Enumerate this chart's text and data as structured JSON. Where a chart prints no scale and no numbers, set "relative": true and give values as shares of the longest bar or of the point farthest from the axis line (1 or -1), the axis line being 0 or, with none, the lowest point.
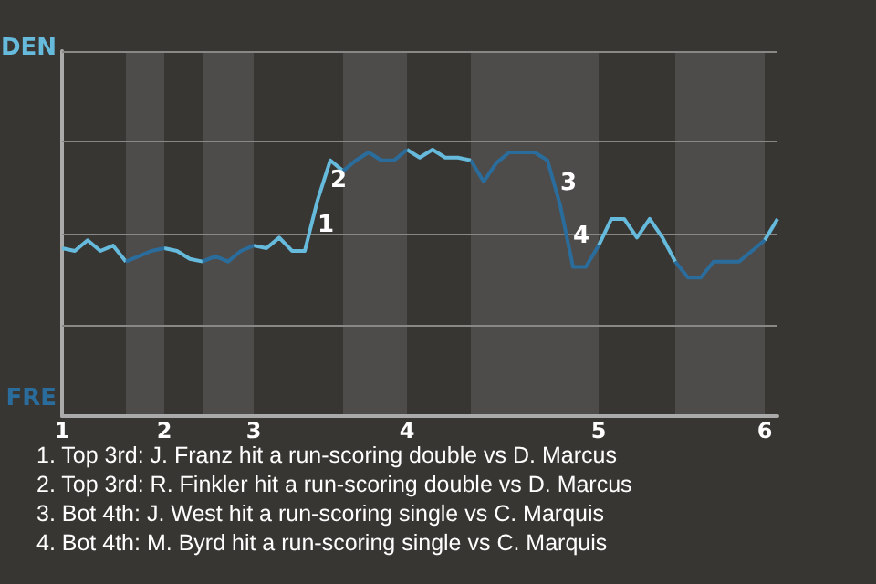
{
  "chart_data": {
    "type": "line",
    "relative": true,
    "categories": [
      "1",
      null,
      null,
      null,
      null,
      null,
      null,
      null,
      "2",
      null,
      null,
      null,
      null,
      null,
      null,
      "3",
      null,
      null,
      null,
      null,
      null,
      null,
      null,
      null,
      null,
      null,
      null,
      "4",
      null,
      null,
      null,
      null,
      null,
      null,
      null,
      null,
      null,
      null,
      null,
      null,
      null,
      null,
      "5",
      null,
      null,
      null,
      null,
      null,
      null,
      null,
      null,
      null,
      null,
      null,
      null,
      "6",
      null
    ],
    "series": [
      {
        "color": "#66bbdd",
        "values": [
          0.63,
          0.62,
          0.66,
          0.62,
          0.64,
          0.58,
          null,
          null,
          0.63,
          0.62,
          0.59,
          0.58,
          null,
          null,
          null,
          0.64,
          0.63,
          0.67,
          0.62,
          0.62,
          0.81,
          0.96,
          0.92,
          null,
          null,
          null,
          null,
          1,
          0.97,
          1,
          0.97,
          0.97,
          0.96,
          null,
          null,
          null,
          null,
          null,
          null,
          null,
          null,
          null,
          0.64,
          0.74,
          0.74,
          0.67,
          0.74,
          0.67,
          0.58,
          null,
          null,
          null,
          null,
          null,
          null,
          0.66,
          0.74
        ]
      },
      {
        "color": "#2a6d9c",
        "values": [
          null,
          null,
          null,
          null,
          null,
          0.58,
          0.6,
          0.62,
          0.63,
          null,
          null,
          0.58,
          0.6,
          0.58,
          0.62,
          0.64,
          null,
          null,
          null,
          null,
          null,
          null,
          0.92,
          0.96,
          0.99,
          0.96,
          0.96,
          1,
          null,
          null,
          null,
          null,
          0.96,
          0.88,
          0.95,
          0.99,
          0.99,
          0.99,
          0.96,
          0.79,
          0.56,
          0.56,
          0.64,
          null,
          null,
          null,
          null,
          null,
          0.58,
          0.52,
          0.52,
          0.58,
          0.58,
          0.58,
          0.62,
          0.66,
          null
        ]
      }
    ],
    "marker": "none",
    "ref_lines": [
      {
        "axis": "y",
        "value": 0.34,
        "color": "#8a8886"
      },
      {
        "axis": "y",
        "value": 0.68,
        "color": "#8a8886"
      },
      {
        "axis": "y",
        "value": 1.03,
        "color": "#8a8886"
      },
      {
        "axis": "y",
        "value": 1.37,
        "color": "#8a8886"
      }
    ],
    "annotations": [
      "DEN",
      "FRE",
      "1",
      "2",
      "3",
      "4",
      "1. Top 3rd: J. Franz hit a run-scoring double vs D. Marcus",
      "2. Top 3rd: R. Finkler hit a run-scoring double vs D. Marcus",
      "3. Bot 4th: J. West hit a run-scoring single vs C. Marquis",
      "4. Bot 4th: M. Byrd hit a run-scoring single vs C. Marquis"
    ]
  }
}
